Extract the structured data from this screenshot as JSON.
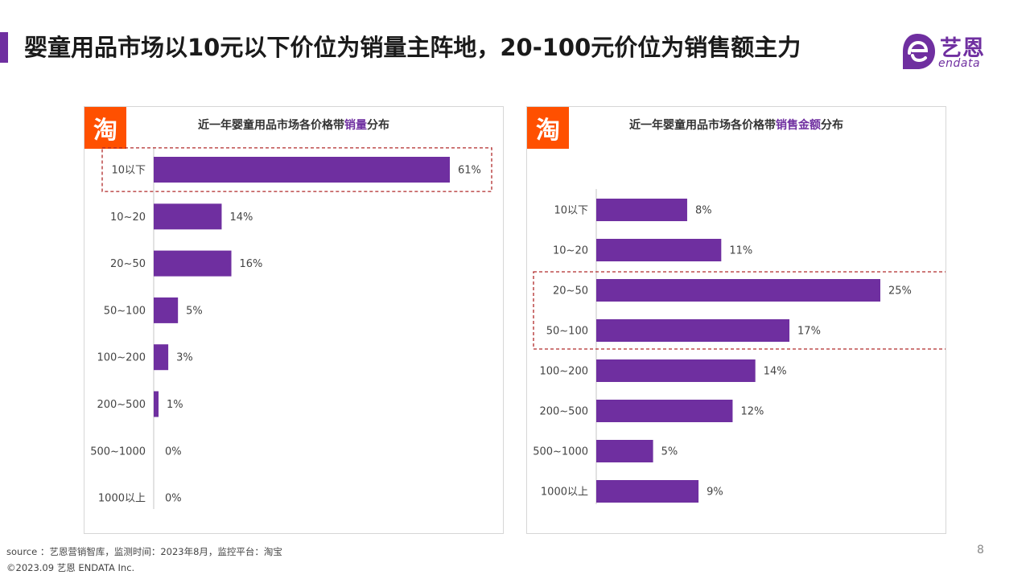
{
  "page": {
    "title": "婴童用品市场以10元以下价位为销量主阵地，20-100元价位为销售额主力",
    "page_number": "8"
  },
  "logo": {
    "cn": "艺恩",
    "en": "endata"
  },
  "badge": {
    "text": "淘"
  },
  "colors": {
    "bar": "#6f2fa0",
    "accent": "#6f2fa0",
    "taobao": "#ff5000",
    "highlight_box": "#b02a2a"
  },
  "footer": {
    "source": "source ：艺恩营销智库，监测时间：2023年8月，监控平台：淘宝",
    "copyright": "©2023.09  艺恩 ENDATA Inc."
  },
  "chart_data": [
    {
      "type": "bar",
      "orientation": "horizontal",
      "title_pre": "近一年婴童用品市场各价格带",
      "title_hl": "销量",
      "title_post": "分布",
      "categories": [
        "10以下",
        "10~20",
        "20~50",
        "50~100",
        "100~200",
        "200~500",
        "500~1000",
        "1000以上"
      ],
      "values": [
        61,
        14,
        16,
        5,
        3,
        1,
        0,
        0
      ],
      "labels": [
        "61%",
        "14%",
        "16%",
        "5%",
        "3%",
        "1%",
        "0%",
        "0%"
      ],
      "value_unit": "%",
      "xlim": [
        0,
        61
      ],
      "highlight": [
        0,
        0
      ]
    },
    {
      "type": "bar",
      "orientation": "horizontal",
      "title_pre": "近一年婴童用品市场各价格带",
      "title_hl": "销售金额",
      "title_post": "分布",
      "categories": [
        "10以下",
        "10~20",
        "20~50",
        "50~100",
        "100~200",
        "200~500",
        "500~1000",
        "1000以上"
      ],
      "values": [
        8,
        11,
        25,
        17,
        14,
        12,
        5,
        9
      ],
      "labels": [
        "8%",
        "11%",
        "25%",
        "17%",
        "14%",
        "12%",
        "5%",
        "9%"
      ],
      "value_unit": "%",
      "xlim": [
        0,
        25
      ],
      "highlight": [
        2,
        3
      ]
    }
  ]
}
